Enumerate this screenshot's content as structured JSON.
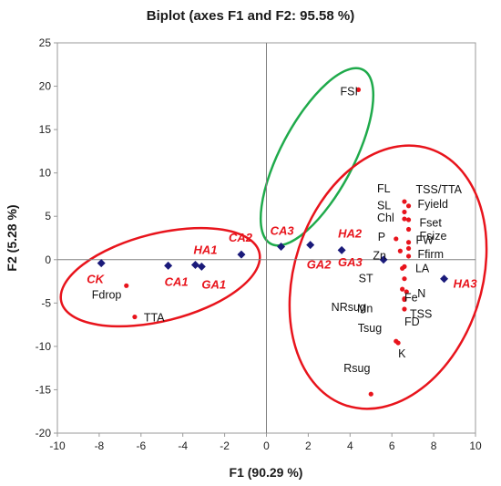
{
  "chart_data": {
    "type": "scatter",
    "title": "Biplot (axes F1 and F2: 95.58 %)",
    "xlabel": "F1 (90.29 %)",
    "ylabel": "F2 (5.28 %)",
    "xlim": [
      -10,
      10
    ],
    "ylim": [
      -20,
      25
    ],
    "xticks": [
      -10,
      -8,
      -6,
      -4,
      -2,
      0,
      2,
      4,
      6,
      8,
      10
    ],
    "yticks": [
      -20,
      -15,
      -10,
      -5,
      0,
      5,
      10,
      15,
      20,
      25
    ],
    "observations": [
      {
        "label": "CK",
        "x": -7.9,
        "y": -0.4
      },
      {
        "label": "CA1",
        "x": -4.7,
        "y": -0.7
      },
      {
        "label": "HA1",
        "x": -3.4,
        "y": -0.6
      },
      {
        "label": "GA1",
        "x": -3.1,
        "y": -0.8
      },
      {
        "label": "CA2",
        "x": -1.2,
        "y": 0.6
      },
      {
        "label": "CA3",
        "x": 0.7,
        "y": 1.5
      },
      {
        "label": "GA2",
        "x": 2.1,
        "y": 1.7
      },
      {
        "label": "HA2",
        "x": 3.6,
        "y": 1.1
      },
      {
        "label": "GA3",
        "x": 5.6,
        "y": 0.0
      },
      {
        "label": "HA3",
        "x": 8.5,
        "y": -2.2
      }
    ],
    "variables": [
      {
        "label": "FSI",
        "x": 4.4,
        "y": 19.6
      },
      {
        "label": "Fdrop",
        "x": -6.7,
        "y": -3.0
      },
      {
        "label": "TTA",
        "x": -6.3,
        "y": -6.6
      },
      {
        "label": "FL",
        "x": 6.6,
        "y": 6.7
      },
      {
        "label": "TSS/TTA",
        "x": 6.8,
        "y": 6.2
      },
      {
        "label": "SL",
        "x": 6.6,
        "y": 5.5
      },
      {
        "label": "Chl",
        "x": 6.6,
        "y": 4.7
      },
      {
        "label": "Fyield",
        "x": 6.8,
        "y": 4.6
      },
      {
        "label": "Fset",
        "x": 6.8,
        "y": 3.5
      },
      {
        "label": "P",
        "x": 6.2,
        "y": 2.4
      },
      {
        "label": "Fsize",
        "x": 6.8,
        "y": 2.0
      },
      {
        "label": "Zn",
        "x": 6.4,
        "y": 1.0
      },
      {
        "label": "FW",
        "x": 6.8,
        "y": 1.3
      },
      {
        "label": "Ffirm",
        "x": 6.8,
        "y": 0.4
      },
      {
        "label": "LA",
        "x": 6.6,
        "y": -0.8
      },
      {
        "label": "ST",
        "x": 6.5,
        "y": -1.0
      },
      {
        "label": "Fe",
        "x": 6.6,
        "y": -2.2
      },
      {
        "label": "NRsug",
        "x": 6.5,
        "y": -3.4
      },
      {
        "label": "N",
        "x": 6.7,
        "y": -3.7
      },
      {
        "label": "Mn",
        "x": 6.6,
        "y": -4.5
      },
      {
        "label": "TSS",
        "x": 6.6,
        "y": -4.6
      },
      {
        "label": "FD",
        "x": 6.6,
        "y": -5.7
      },
      {
        "label": "Tsug",
        "x": 6.2,
        "y": -9.4
      },
      {
        "label": "K",
        "x": 6.3,
        "y": -9.6
      },
      {
        "label": "Rsug",
        "x": 5.0,
        "y": -15.5
      }
    ],
    "groups": [
      {
        "color": "#e8141c",
        "members": [
          "CK",
          "CA1",
          "HA1",
          "GA1",
          "CA2"
        ]
      },
      {
        "color": "#1faa4b",
        "members": [
          "CA3",
          "FSI"
        ]
      },
      {
        "color": "#e8141c",
        "members": [
          "GA2",
          "HA2",
          "GA3",
          "HA3"
        ]
      }
    ],
    "colors": {
      "observation": "#1a1a7a",
      "observation_label": "#e8141c",
      "variable": "#e8141c",
      "variable_label": "#111111",
      "axis": "#808080"
    },
    "grid": false,
    "legend": "none"
  }
}
